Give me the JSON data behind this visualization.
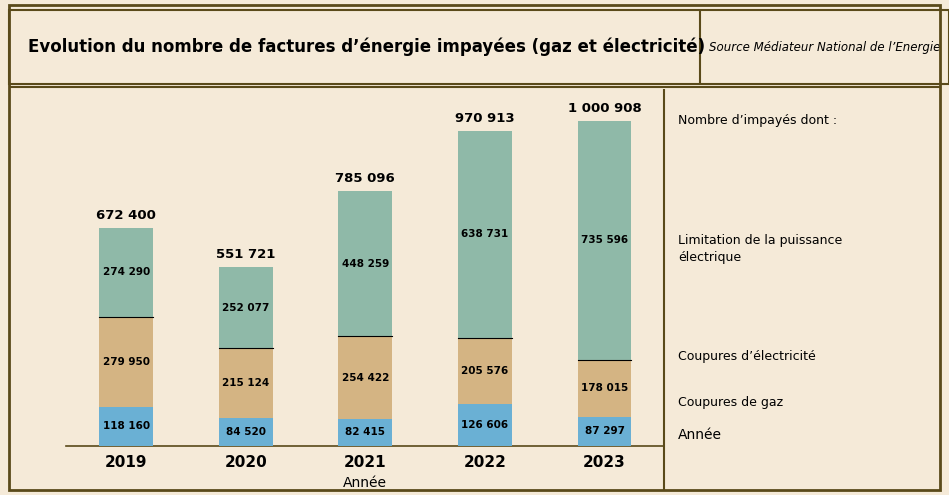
{
  "title": "Evolution du nombre de factures d’énergie impayées (gaz et électricité)",
  "source": "Source Médiateur National de l’Energie",
  "years": [
    "2019",
    "2020",
    "2021",
    "2022",
    "2023"
  ],
  "gaz": [
    118160,
    84520,
    82415,
    126606,
    87297
  ],
  "elec": [
    279950,
    215124,
    254422,
    205576,
    178015
  ],
  "limitation": [
    274290,
    252077,
    448259,
    638731,
    735596
  ],
  "totals": [
    "672 400",
    "551 721",
    "785 096",
    "970 913",
    "1 000 908"
  ],
  "gaz_labels": [
    "118 160",
    "84 520",
    "82 415",
    "126 606",
    "87 297"
  ],
  "elec_labels": [
    "279 950",
    "215 124",
    "254 422",
    "205 576",
    "178 015"
  ],
  "lim_labels": [
    "274 290",
    "252 077",
    "448 259",
    "638 731",
    "735 596"
  ],
  "color_gaz": "#6ab0d4",
  "color_elec": "#d4b483",
  "color_lim": "#8fb9a8",
  "bg_color": "#f5ead8",
  "border_color": "#5a4a1a",
  "legend_gaz": "Coupures de gaz",
  "legend_elec": "Coupures d’électricité",
  "legend_lim": "Limitation de la puissance\nélectrique",
  "legend_title": "Nombre d’impayés dont :",
  "xlabel": "Année",
  "ylim": [
    0,
    1100000
  ],
  "bar_width": 0.45
}
